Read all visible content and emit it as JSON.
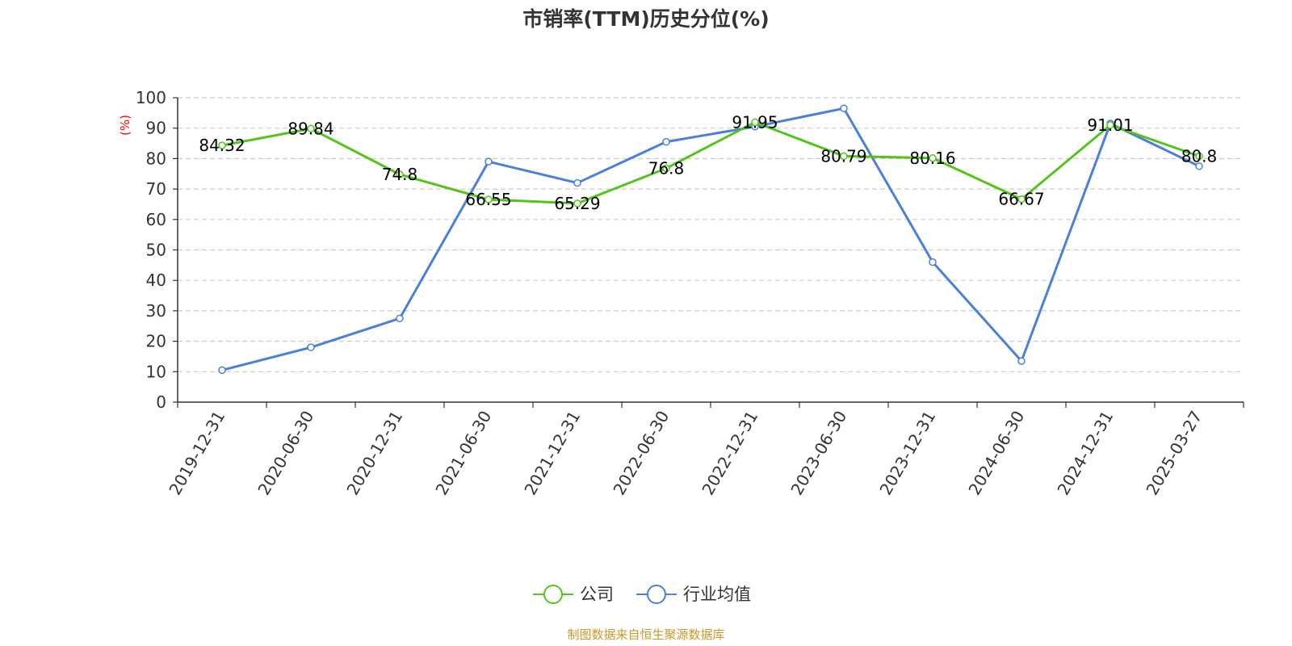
{
  "colors": {
    "company": "#52c41a",
    "industry": "#4a7fdc",
    "unit": "#ff0000",
    "source": "#c8982a",
    "grid": "#cccccc",
    "axis": "#333333"
  },
  "chart_data": {
    "type": "line",
    "title": "市销率(TTM)历史分位(%)",
    "ylabel": "(%)",
    "ylim": [
      0,
      100
    ],
    "yticks": [
      0,
      10,
      20,
      30,
      40,
      50,
      60,
      70,
      80,
      90,
      100
    ],
    "grid": true,
    "legend_position": "bottom-center",
    "categories": [
      "2019-12-31",
      "2020-06-30",
      "2020-12-31",
      "2021-06-30",
      "2021-12-31",
      "2022-06-30",
      "2022-12-31",
      "2023-06-30",
      "2023-12-31",
      "2024-06-30",
      "2024-12-31",
      "2025-03-27"
    ],
    "series": [
      {
        "name": "公司",
        "values": [
          84.32,
          89.84,
          74.8,
          66.55,
          65.29,
          76.8,
          91.95,
          80.79,
          80.16,
          66.67,
          91.01,
          80.8
        ],
        "labels": [
          "84.32",
          "89.84",
          "74.8",
          "66.55",
          "65.29",
          "76.8",
          "91.95",
          "80.79",
          "80.16",
          "66.67",
          "91.01",
          "80.8"
        ]
      },
      {
        "name": "行业均值",
        "values": [
          10.5,
          18.0,
          27.5,
          79.0,
          72.0,
          85.5,
          90.5,
          96.5,
          46.0,
          13.5,
          91.5,
          77.5
        ]
      }
    ]
  },
  "source": "制图数据来自恒生聚源数据库"
}
